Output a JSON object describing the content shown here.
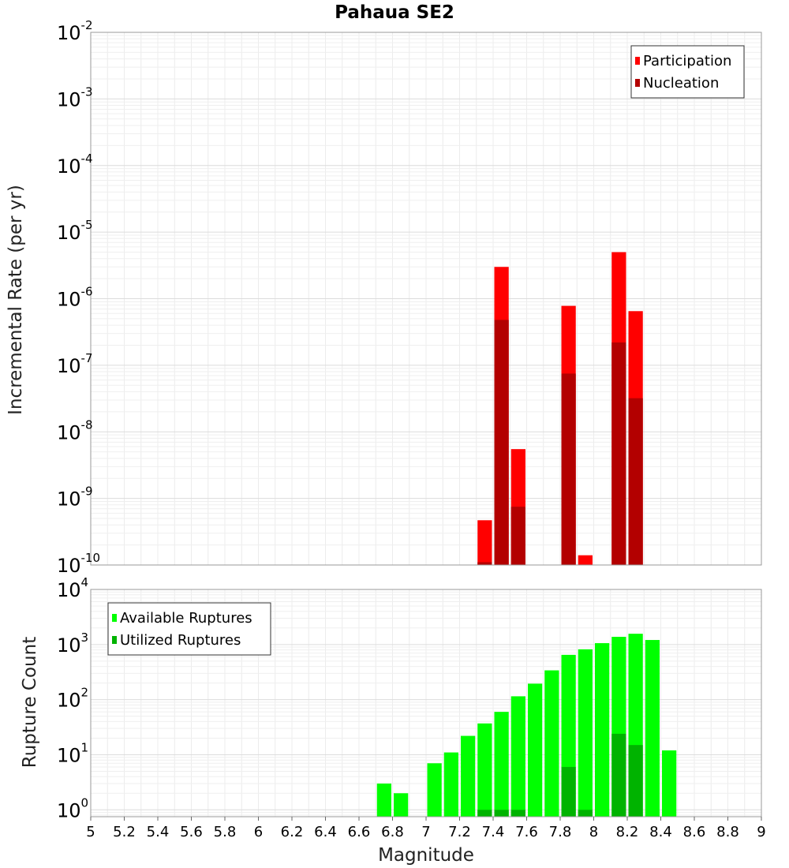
{
  "chart_data": [
    {
      "type": "bar",
      "title": "Pahaua SE2",
      "xlabel": "",
      "ylabel": "Incremental Rate (per yr)",
      "yscale": "log",
      "ylim": [
        1e-10,
        0.01
      ],
      "xlim": [
        5,
        9
      ],
      "bin_width": 0.1,
      "grid": true,
      "legend_position": "top-right",
      "series": [
        {
          "name": "Participation",
          "color": "#ff0000",
          "x": [
            7.35,
            7.45,
            7.55,
            7.85,
            7.95,
            8.15,
            8.25
          ],
          "values": [
            4.7e-10,
            3e-06,
            5.5e-09,
            7.8e-07,
            1.4e-10,
            5e-06,
            6.5e-07
          ]
        },
        {
          "name": "Nucleation",
          "color": "#b30000",
          "x": [
            7.35,
            7.45,
            7.55,
            7.85,
            8.15,
            8.25
          ],
          "values": [
            1.1e-10,
            4.8e-07,
            7.5e-10,
            7.5e-08,
            2.2e-07,
            3.2e-08
          ]
        }
      ]
    },
    {
      "type": "bar",
      "title": "",
      "xlabel": "Magnitude",
      "ylabel": "Rupture Count",
      "yscale": "log",
      "ylim": [
        0.75,
        10000
      ],
      "xlim": [
        5,
        9
      ],
      "bin_width": 0.1,
      "grid": true,
      "legend_position": "top-left",
      "x_ticks": [
        "5",
        "5.2",
        "5.4",
        "5.6",
        "5.8",
        "6",
        "6.2",
        "6.4",
        "6.6",
        "6.8",
        "7",
        "7.2",
        "7.4",
        "7.6",
        "7.8",
        "8",
        "8.2",
        "8.4",
        "8.6",
        "8.8",
        "9"
      ],
      "series": [
        {
          "name": "Available Ruptures",
          "color": "#00ff00",
          "x": [
            6.75,
            6.85,
            7.05,
            7.15,
            7.25,
            7.35,
            7.45,
            7.55,
            7.65,
            7.75,
            7.85,
            7.95,
            8.05,
            8.15,
            8.25,
            8.35,
            8.45
          ],
          "values": [
            3,
            2,
            7,
            11,
            22,
            37,
            60,
            115,
            195,
            340,
            650,
            820,
            1060,
            1380,
            1570,
            1210,
            12
          ]
        },
        {
          "name": "Utilized Ruptures",
          "color": "#00b300",
          "x": [
            7.35,
            7.45,
            7.55,
            7.85,
            7.95,
            8.15,
            8.25
          ],
          "values": [
            1,
            1,
            1,
            6,
            1,
            24,
            15
          ]
        }
      ]
    }
  ]
}
